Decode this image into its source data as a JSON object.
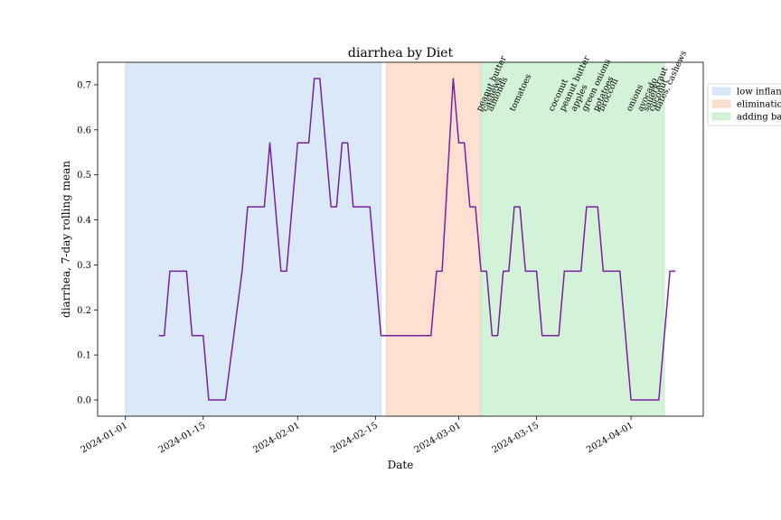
{
  "chart_data": {
    "type": "line",
    "title": "diarrhea by Diet",
    "xlabel": "Date",
    "ylabel": "diarrhea, 7-day rolling mean",
    "xlim": [
      "2023-12-27",
      "2024-04-14"
    ],
    "ylim": [
      -0.036,
      0.75
    ],
    "x_ticks": [
      "2024-01-01",
      "2024-01-15",
      "2024-02-01",
      "2024-02-15",
      "2024-03-01",
      "2024-03-15",
      "2024-04-01"
    ],
    "y_ticks": [
      0.0,
      0.1,
      0.2,
      0.3,
      0.4,
      0.5,
      0.6,
      0.7
    ],
    "y_tick_labels": [
      "0.0",
      "0.1",
      "0.2",
      "0.3",
      "0.4",
      "0.5",
      "0.6",
      "0.7"
    ],
    "grid": false,
    "legend_position": "right, outside plot area (clipped)",
    "line_color": "#7b1fa2",
    "series": [
      {
        "points": [
          [
            "2024-01-07",
            0.143
          ],
          [
            "2024-01-08",
            0.143
          ],
          [
            "2024-01-09",
            0.286
          ],
          [
            "2024-01-10",
            0.286
          ],
          [
            "2024-01-11",
            0.286
          ],
          [
            "2024-01-12",
            0.286
          ],
          [
            "2024-01-13",
            0.143
          ],
          [
            "2024-01-14",
            0.143
          ],
          [
            "2024-01-15",
            0.143
          ],
          [
            "2024-01-16",
            0.0
          ],
          [
            "2024-01-17",
            0.0
          ],
          [
            "2024-01-18",
            0.0
          ],
          [
            "2024-01-19",
            0.0
          ],
          [
            "2024-01-22",
            0.286
          ],
          [
            "2024-01-23",
            0.429
          ],
          [
            "2024-01-24",
            0.429
          ],
          [
            "2024-01-25",
            0.429
          ],
          [
            "2024-01-26",
            0.429
          ],
          [
            "2024-01-27",
            0.571
          ],
          [
            "2024-01-29",
            0.286
          ],
          [
            "2024-01-30",
            0.286
          ],
          [
            "2024-02-01",
            0.571
          ],
          [
            "2024-02-02",
            0.571
          ],
          [
            "2024-02-03",
            0.571
          ],
          [
            "2024-02-04",
            0.714
          ],
          [
            "2024-02-05",
            0.714
          ],
          [
            "2024-02-07",
            0.429
          ],
          [
            "2024-02-08",
            0.429
          ],
          [
            "2024-02-09",
            0.571
          ],
          [
            "2024-02-10",
            0.571
          ],
          [
            "2024-02-11",
            0.429
          ],
          [
            "2024-02-12",
            0.429
          ],
          [
            "2024-02-13",
            0.429
          ],
          [
            "2024-02-14",
            0.429
          ],
          [
            "2024-02-16",
            0.143
          ],
          [
            "2024-02-17",
            0.143
          ],
          [
            "2024-02-18",
            0.143
          ],
          [
            "2024-02-19",
            0.143
          ],
          [
            "2024-02-20",
            0.143
          ],
          [
            "2024-02-21",
            0.143
          ],
          [
            "2024-02-22",
            0.143
          ],
          [
            "2024-02-23",
            0.143
          ],
          [
            "2024-02-24",
            0.143
          ],
          [
            "2024-02-25",
            0.143
          ],
          [
            "2024-02-26",
            0.286
          ],
          [
            "2024-02-27",
            0.286
          ],
          [
            "2024-02-29",
            0.714
          ],
          [
            "2024-03-01",
            0.571
          ],
          [
            "2024-03-02",
            0.571
          ],
          [
            "2024-03-03",
            0.429
          ],
          [
            "2024-03-04",
            0.429
          ],
          [
            "2024-03-05",
            0.286
          ],
          [
            "2024-03-06",
            0.286
          ],
          [
            "2024-03-07",
            0.143
          ],
          [
            "2024-03-08",
            0.143
          ],
          [
            "2024-03-09",
            0.286
          ],
          [
            "2024-03-10",
            0.286
          ],
          [
            "2024-03-11",
            0.429
          ],
          [
            "2024-03-12",
            0.429
          ],
          [
            "2024-03-13",
            0.286
          ],
          [
            "2024-03-14",
            0.286
          ],
          [
            "2024-03-15",
            0.286
          ],
          [
            "2024-03-16",
            0.143
          ],
          [
            "2024-03-17",
            0.143
          ],
          [
            "2024-03-18",
            0.143
          ],
          [
            "2024-03-19",
            0.143
          ],
          [
            "2024-03-20",
            0.286
          ],
          [
            "2024-03-21",
            0.286
          ],
          [
            "2024-03-22",
            0.286
          ],
          [
            "2024-03-23",
            0.286
          ],
          [
            "2024-03-24",
            0.429
          ],
          [
            "2024-03-25",
            0.429
          ],
          [
            "2024-03-26",
            0.429
          ],
          [
            "2024-03-27",
            0.286
          ],
          [
            "2024-03-28",
            0.286
          ],
          [
            "2024-03-29",
            0.286
          ],
          [
            "2024-03-30",
            0.286
          ],
          [
            "2024-04-01",
            0.0
          ],
          [
            "2024-04-02",
            0.0
          ],
          [
            "2024-04-03",
            0.0
          ],
          [
            "2024-04-04",
            0.0
          ],
          [
            "2024-04-05",
            0.0
          ],
          [
            "2024-04-06",
            0.0
          ],
          [
            "2024-04-08",
            0.286
          ],
          [
            "2024-04-09",
            0.286
          ]
        ]
      }
    ],
    "phases": [
      {
        "label": "low inflan",
        "start": "2024-01-01",
        "end": "2024-02-16",
        "color": "#dae8f8",
        "edge": "#c5d8ef"
      },
      {
        "label": "eliminatio",
        "start": "2024-02-17",
        "end": "2024-03-05",
        "color": "#fde0cf",
        "edge": "#f3cbb3"
      },
      {
        "label": "adding ba",
        "start": "2024-03-05",
        "end": "2024-04-07",
        "color": "#d3f3d8",
        "edge": "#bde6c3"
      }
    ],
    "annotations": [
      {
        "text": "peanut butter",
        "x": "2024-03-05",
        "y": 0.64
      },
      {
        "text": "cashews",
        "x": "2024-03-06",
        "y": 0.64
      },
      {
        "text": "almonds",
        "x": "2024-03-07",
        "y": 0.64
      },
      {
        "text": "tomatoes",
        "x": "2024-03-11",
        "y": 0.64
      },
      {
        "text": "coconut",
        "x": "2024-03-18",
        "y": 0.64
      },
      {
        "text": "peanut butter",
        "x": "2024-03-20",
        "y": 0.64
      },
      {
        "text": "apples",
        "x": "2024-03-22",
        "y": 0.64
      },
      {
        "text": "green onions",
        "x": "2024-03-24",
        "y": 0.64
      },
      {
        "text": "potatoes",
        "x": "2024-03-26",
        "y": 0.64
      },
      {
        "text": "broccoli",
        "x": "2024-03-27",
        "y": 0.64
      },
      {
        "text": "onions",
        "x": "2024-04-01",
        "y": 0.64
      },
      {
        "text": "avocado",
        "x": "2024-04-03",
        "y": 0.64
      },
      {
        "text": "sauerkraut",
        "x": "2024-04-04",
        "y": 0.64
      },
      {
        "text": "coconut",
        "x": "2024-04-05",
        "y": 0.64
      },
      {
        "text": "dates, cashews",
        "x": "2024-04-06",
        "y": 0.64
      }
    ]
  }
}
